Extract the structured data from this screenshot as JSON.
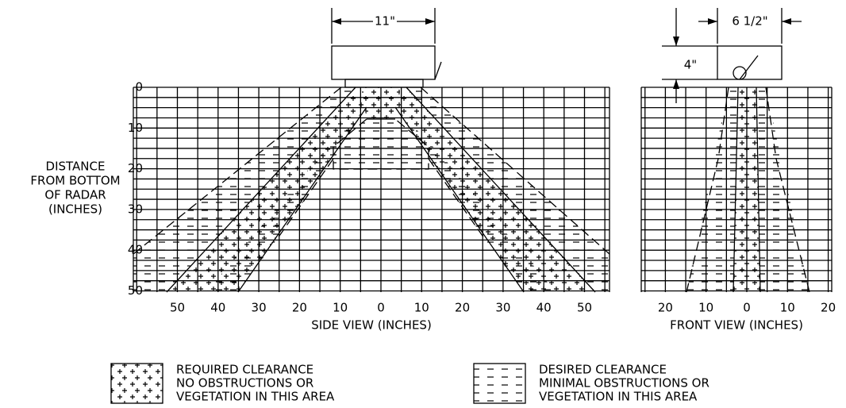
{
  "dimensions": {
    "side_width": "11\"",
    "front_width": "6 1/2\"",
    "height": "4\""
  },
  "y_axis": {
    "label": [
      "DISTANCE",
      "FROM BOTTOM",
      "OF RADAR",
      "(INCHES)"
    ],
    "ticks": [
      "0",
      "10",
      "20",
      "30",
      "40",
      "50"
    ]
  },
  "side_view": {
    "title": "SIDE VIEW (INCHES)",
    "ticks": [
      "50",
      "40",
      "30",
      "20",
      "10",
      "0",
      "10",
      "20",
      "30",
      "40",
      "50"
    ]
  },
  "front_view": {
    "title": "FRONT VIEW (INCHES)",
    "ticks": [
      "20",
      "10",
      "0",
      "10",
      "20"
    ]
  },
  "legend": [
    {
      "lines": [
        "REQUIRED CLEARANCE",
        "NO OBSTRUCTIONS OR",
        "VEGETATION IN THIS AREA"
      ]
    },
    {
      "lines": [
        "DESIRED CLEARANCE",
        "MINIMAL OBSTRUCTIONS OR",
        "VEGETATION IN THIS AREA"
      ]
    }
  ]
}
